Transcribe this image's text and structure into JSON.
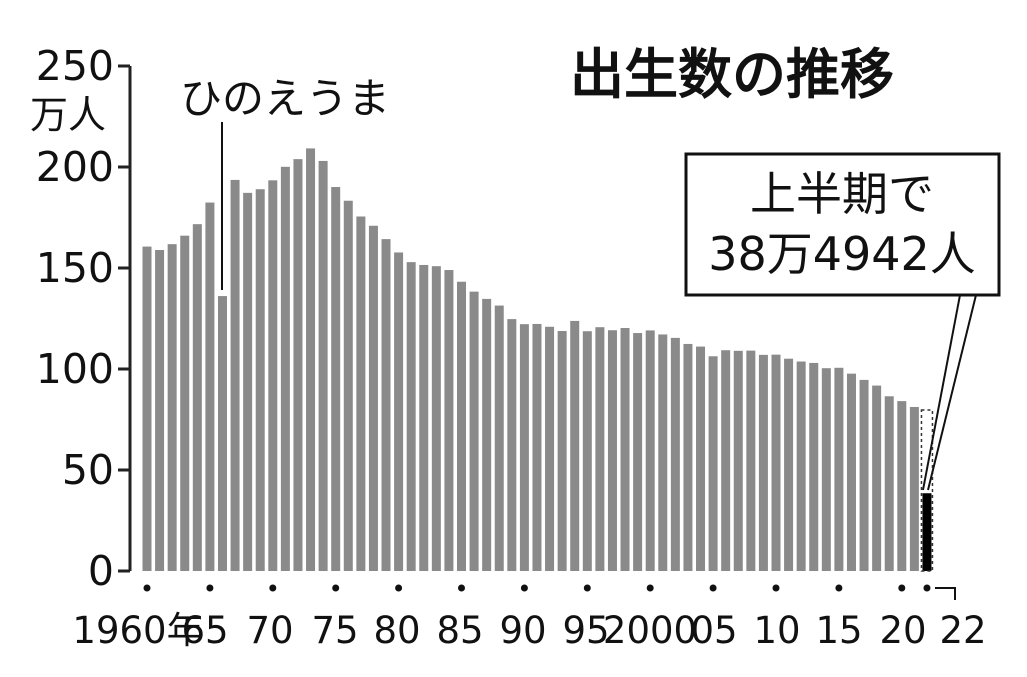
{
  "chart_data": {
    "type": "bar",
    "title": "出生数の推移",
    "y_unit": "万人",
    "ylim": [
      0,
      250
    ],
    "y_ticks": [
      "0",
      "50",
      "100",
      "150",
      "200",
      "250"
    ],
    "x_tick_labels": [
      "1960年",
      "65",
      "70",
      "75",
      "80",
      "85",
      "90",
      "95",
      "2000",
      "05",
      "10",
      "15",
      "20",
      "22"
    ],
    "categories": [
      1960,
      1961,
      1962,
      1963,
      1964,
      1965,
      1966,
      1967,
      1968,
      1969,
      1970,
      1971,
      1972,
      1973,
      1974,
      1975,
      1976,
      1977,
      1978,
      1979,
      1980,
      1981,
      1982,
      1983,
      1984,
      1985,
      1986,
      1987,
      1988,
      1989,
      1990,
      1991,
      1992,
      1993,
      1994,
      1995,
      1996,
      1997,
      1998,
      1999,
      2000,
      2001,
      2002,
      2003,
      2004,
      2005,
      2006,
      2007,
      2008,
      2009,
      2010,
      2011,
      2012,
      2013,
      2014,
      2015,
      2016,
      2017,
      2018,
      2019,
      2020,
      2021,
      2022
    ],
    "values": [
      160.6,
      158.9,
      161.8,
      166.0,
      171.7,
      182.4,
      136.1,
      193.6,
      187.2,
      189.0,
      193.4,
      200.1,
      203.9,
      209.2,
      203.0,
      190.1,
      183.3,
      175.5,
      170.9,
      164.3,
      157.7,
      152.9,
      151.5,
      150.9,
      149.0,
      143.2,
      138.3,
      134.7,
      131.4,
      124.7,
      122.2,
      122.3,
      120.9,
      118.8,
      123.8,
      118.7,
      120.7,
      119.2,
      120.3,
      117.8,
      119.1,
      117.1,
      115.4,
      112.4,
      111.1,
      106.3,
      109.3,
      109.0,
      109.1,
      107.0,
      107.1,
      105.1,
      103.7,
      103.0,
      100.4,
      100.6,
      97.7,
      94.6,
      91.8,
      86.5,
      84.1,
      81.2,
      38.4942
    ],
    "grid": false,
    "annotation_hinoeuma": "ひのえうま",
    "callout_line1": "上半期で",
    "callout_line2": "38万4942人",
    "colors": {
      "bar": "#8a8a8a",
      "highlight": "#000000",
      "text": "#111111",
      "axis": "#222222"
    }
  }
}
